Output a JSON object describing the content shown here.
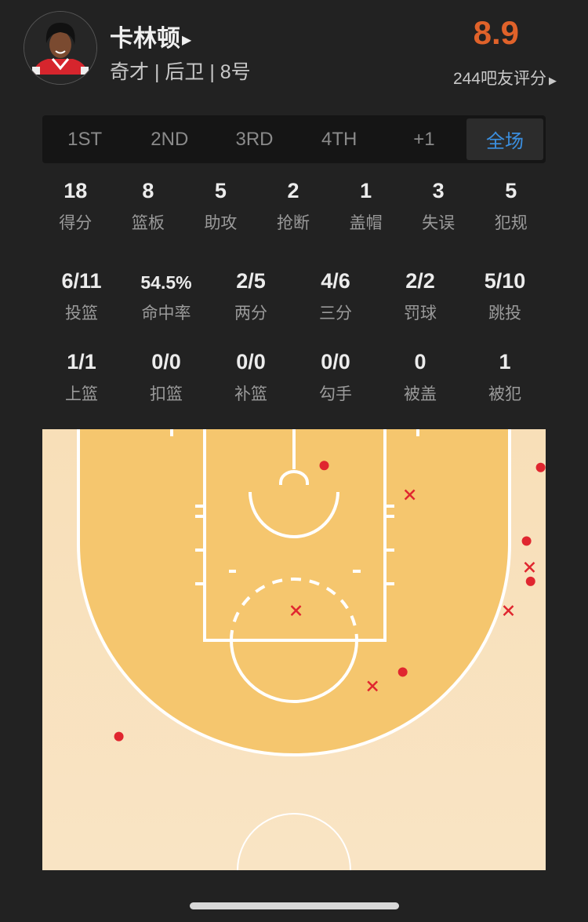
{
  "player": {
    "name": "卡林顿",
    "info": "奇才 | 后卫 | 8号",
    "rating": "8.9",
    "raters": "244吧友评分",
    "rating_color": "#e0622a"
  },
  "tabs": [
    {
      "label": "1ST",
      "active": false
    },
    {
      "label": "2ND",
      "active": false
    },
    {
      "label": "3RD",
      "active": false
    },
    {
      "label": "4TH",
      "active": false
    },
    {
      "label": "+1",
      "active": false
    },
    {
      "label": "全场",
      "active": true
    }
  ],
  "basic_stats": [
    {
      "value": "18",
      "label": "得分"
    },
    {
      "value": "8",
      "label": "篮板"
    },
    {
      "value": "5",
      "label": "助攻"
    },
    {
      "value": "2",
      "label": "抢断"
    },
    {
      "value": "1",
      "label": "盖帽"
    },
    {
      "value": "3",
      "label": "失误"
    },
    {
      "value": "5",
      "label": "犯规"
    }
  ],
  "shooting_stats": [
    {
      "value": "6/11",
      "label": "投篮"
    },
    {
      "value": "54.5%",
      "label": "命中率"
    },
    {
      "value": "2/5",
      "label": "两分"
    },
    {
      "value": "4/6",
      "label": "三分"
    },
    {
      "value": "2/2",
      "label": "罚球"
    },
    {
      "value": "5/10",
      "label": "跳投"
    }
  ],
  "shot_type_stats": [
    {
      "value": "1/1",
      "label": "上篮"
    },
    {
      "value": "0/0",
      "label": "扣篮"
    },
    {
      "value": "0/0",
      "label": "补篮"
    },
    {
      "value": "0/0",
      "label": "勾手"
    },
    {
      "value": "0",
      "label": "被盖"
    },
    {
      "value": "1",
      "label": "被犯"
    }
  ],
  "shot_chart": {
    "units": "feet from court center line and baseline",
    "made_marker": "dot",
    "missed_marker": "x",
    "marker_color": "#e0262f",
    "shots": [
      {
        "x": 3.0,
        "y": 3.6,
        "made": true
      },
      {
        "x": 24.5,
        "y": 3.8,
        "made": true
      },
      {
        "x": 23.1,
        "y": 11.1,
        "made": true
      },
      {
        "x": 23.5,
        "y": 15.1,
        "made": true
      },
      {
        "x": 10.8,
        "y": 24.1,
        "made": true
      },
      {
        "x": -17.4,
        "y": 30.5,
        "made": true
      },
      {
        "x": 11.5,
        "y": 6.5,
        "made": false
      },
      {
        "x": 23.4,
        "y": 13.7,
        "made": false
      },
      {
        "x": 21.3,
        "y": 18.0,
        "made": false
      },
      {
        "x": 0.2,
        "y": 18.0,
        "made": false
      },
      {
        "x": 7.8,
        "y": 25.5,
        "made": false
      }
    ]
  }
}
